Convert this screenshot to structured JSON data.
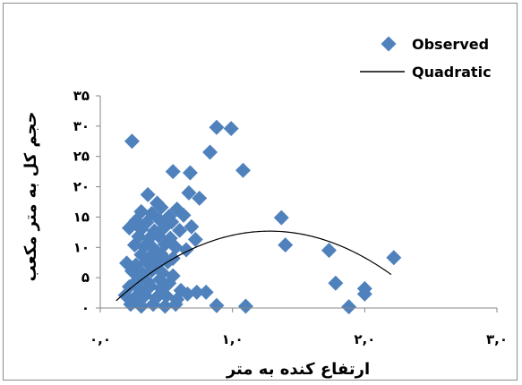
{
  "chart_data": {
    "type": "scatter",
    "xlabel": "ارتفاع کنده به متر",
    "ylabel": "حجم کل به متر مکعب",
    "xlim": [
      0,
      3
    ],
    "ylim": [
      0,
      35
    ],
    "x_ticks": [
      {
        "value": 0,
        "label": "٠,٠"
      },
      {
        "value": 1,
        "label": "١,٠"
      },
      {
        "value": 2,
        "label": "٢,٠"
      },
      {
        "value": 3,
        "label": "٣,٠"
      }
    ],
    "y_ticks": [
      {
        "value": 0,
        "label": "٠"
      },
      {
        "value": 5,
        "label": "۵"
      },
      {
        "value": 10,
        "label": "١٠"
      },
      {
        "value": 15,
        "label": "١۵"
      },
      {
        "value": 20,
        "label": "٢٠"
      },
      {
        "value": 25,
        "label": "٢۵"
      },
      {
        "value": 30,
        "label": "٣٠"
      },
      {
        "value": 35,
        "label": "٣۵"
      }
    ],
    "grid": false,
    "legend_position": "top-right",
    "series": [
      {
        "name": "Observed",
        "kind": "scatter",
        "marker": "diamond",
        "color": "#4f81bd",
        "points": [
          [
            0.24,
            27.5
          ],
          [
            0.88,
            29.8
          ],
          [
            0.83,
            25.7
          ],
          [
            0.99,
            29.6
          ],
          [
            1.08,
            22.7
          ],
          [
            0.68,
            22.3
          ],
          [
            0.55,
            22.5
          ],
          [
            0.36,
            18.7
          ],
          [
            0.67,
            19.0
          ],
          [
            0.75,
            18.1
          ],
          [
            0.43,
            17.3
          ],
          [
            0.46,
            16.6
          ],
          [
            0.58,
            16.3
          ],
          [
            0.31,
            15.9
          ],
          [
            0.39,
            15.6
          ],
          [
            0.52,
            15.1
          ],
          [
            0.63,
            15.3
          ],
          [
            0.27,
            14.4
          ],
          [
            0.35,
            14.1
          ],
          [
            0.45,
            14.5
          ],
          [
            0.54,
            14.2
          ],
          [
            0.22,
            13.2
          ],
          [
            0.31,
            13.0
          ],
          [
            0.41,
            12.7
          ],
          [
            0.48,
            13.2
          ],
          [
            0.6,
            12.8
          ],
          [
            0.69,
            13.4
          ],
          [
            0.29,
            11.8
          ],
          [
            0.37,
            11.5
          ],
          [
            0.44,
            11.9
          ],
          [
            0.53,
            11.5
          ],
          [
            0.72,
            11.3
          ],
          [
            0.26,
            10.4
          ],
          [
            0.33,
            10.1
          ],
          [
            0.4,
            9.9
          ],
          [
            0.49,
            10.5
          ],
          [
            0.57,
            10.0
          ],
          [
            0.65,
            9.6
          ],
          [
            0.31,
            8.8
          ],
          [
            0.38,
            8.6
          ],
          [
            0.46,
            8.9
          ],
          [
            0.55,
            8.2
          ],
          [
            0.2,
            7.4
          ],
          [
            0.27,
            7.1
          ],
          [
            0.35,
            7.6
          ],
          [
            0.43,
            7.2
          ],
          [
            0.51,
            7.6
          ],
          [
            0.24,
            6.1
          ],
          [
            0.32,
            5.7
          ],
          [
            0.39,
            6.2
          ],
          [
            0.47,
            5.8
          ],
          [
            0.55,
            5.3
          ],
          [
            0.28,
            4.6
          ],
          [
            0.36,
            4.3
          ],
          [
            0.45,
            4.7
          ],
          [
            0.52,
            4.1
          ],
          [
            0.22,
            3.5
          ],
          [
            0.3,
            3.1
          ],
          [
            0.38,
            3.6
          ],
          [
            0.46,
            3.2
          ],
          [
            0.61,
            2.9
          ],
          [
            0.73,
            2.6
          ],
          [
            0.8,
            2.6
          ],
          [
            0.19,
            2.1
          ],
          [
            0.26,
            1.7
          ],
          [
            0.34,
            2.1
          ],
          [
            0.42,
            1.6
          ],
          [
            0.5,
            2.0
          ],
          [
            0.58,
            1.4
          ],
          [
            0.66,
            2.3
          ],
          [
            0.23,
            0.6
          ],
          [
            0.31,
            0.3
          ],
          [
            0.4,
            0.6
          ],
          [
            0.49,
            0.3
          ],
          [
            0.57,
            0.6
          ],
          [
            0.88,
            0.4
          ],
          [
            1.1,
            0.3
          ],
          [
            1.88,
            0.2
          ],
          [
            1.37,
            14.9
          ],
          [
            1.4,
            10.4
          ],
          [
            1.73,
            9.5
          ],
          [
            2.22,
            8.3
          ],
          [
            1.78,
            4.1
          ],
          [
            2.0,
            3.2
          ],
          [
            2.0,
            2.3
          ]
        ]
      },
      {
        "name": "Quadratic",
        "kind": "line",
        "color": "#000000",
        "coefficients": {
          "a": -8.5,
          "b": 21.8,
          "c": -1.3
        },
        "x_range": [
          0.12,
          2.2
        ]
      }
    ]
  }
}
